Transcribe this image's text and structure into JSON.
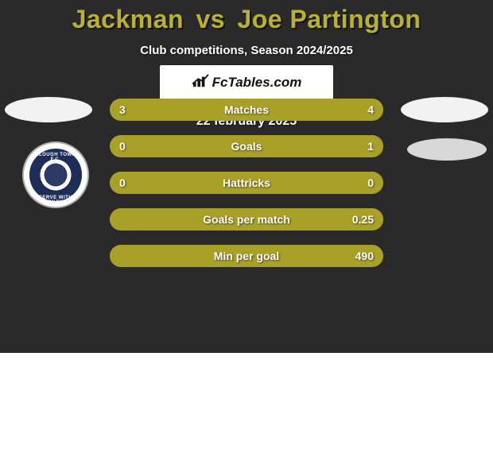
{
  "background_color": "#2a2a2a",
  "accent_color": "#a9a028",
  "track_color": "#706a1e",
  "title": {
    "player1": "Jackman",
    "vs": "vs",
    "player2": "Joe Partington",
    "color": "#bab22e"
  },
  "subtitle": "Club competitions, Season 2024/2025",
  "stats": {
    "rows": [
      {
        "label": "Matches",
        "left": "3",
        "right": "4",
        "left_pct": 40,
        "right_pct": 60
      },
      {
        "label": "Goals",
        "left": "0",
        "right": "1",
        "left_pct": 5,
        "right_pct": 95
      },
      {
        "label": "Hattricks",
        "left": "0",
        "right": "0",
        "left_pct": 50,
        "right_pct": 50
      },
      {
        "label": "Goals per match",
        "left": "",
        "right": "0.25",
        "left_pct": 0,
        "right_pct": 100
      },
      {
        "label": "Min per goal",
        "left": "",
        "right": "490",
        "left_pct": 0,
        "right_pct": 100
      }
    ]
  },
  "brand": "FcTables.com",
  "date": "22 february 2025",
  "badge": {
    "outer_text_top": "SLOUGH TOWN F.C.",
    "outer_text_bottom": "SERVE WITH HONOUR"
  }
}
